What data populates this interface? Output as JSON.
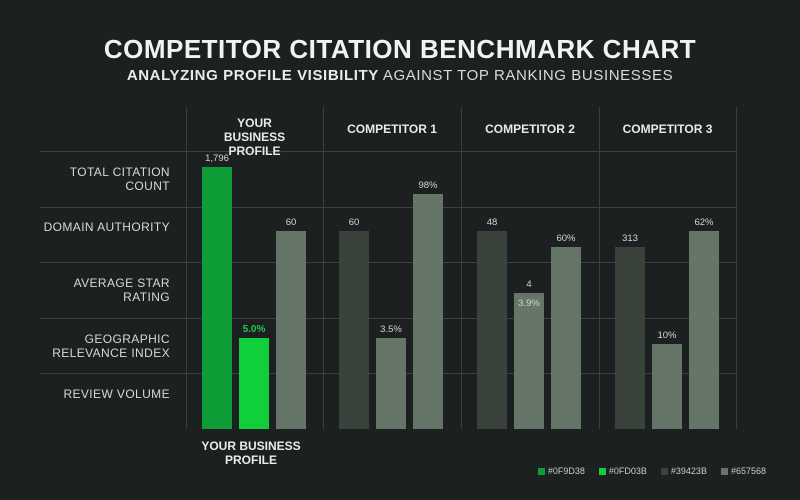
{
  "title": "COMPETITOR CITATION BENCHMARK CHART",
  "subtitle_bold": "ANALYZING PROFILE VISIBILITY",
  "subtitle_rest": " AGAINST TOP RANKING BUSINESSES",
  "bottom_label": "YOUR BUSINESS PROFILE",
  "colors": {
    "dark_green": "#0F9D38",
    "bright_green": "#0FD03B",
    "dark_gray": "#39423B",
    "light_gray": "#657568"
  },
  "legend": [
    {
      "label": "#0F9D38",
      "color": "#0F9D38"
    },
    {
      "label": "#0FD03B",
      "color": "#0FD03B"
    },
    {
      "label": "#39423B",
      "color": "#39423B"
    },
    {
      "label": "#657568",
      "color": "#657568"
    }
  ],
  "chart_data": {
    "type": "bar",
    "columns": [
      "YOUR BUSINESS PROFILE",
      "COMPETITOR 1",
      "COMPETITOR 2",
      "COMPETITOR 3"
    ],
    "rows": [
      "TOTAL CITATION COUNT",
      "DOMAIN AUTHORITY",
      "AVERAGE STAR RATING",
      "GEOGRAPHIC RELEVANCE INDEX",
      "REVIEW VOLUME"
    ],
    "groups": [
      {
        "column": "YOUR BUSINESS PROFILE",
        "bars": [
          {
            "value_label": "1,796",
            "level": 0.98,
            "color": "#0F9D38",
            "highlight": false
          },
          {
            "value_label": "5.0%",
            "level": 0.34,
            "color": "#0FD03B",
            "highlight": true
          },
          {
            "value_label": "60",
            "level": 0.74,
            "color": "#657568",
            "highlight": false
          }
        ]
      },
      {
        "column": "COMPETITOR 1",
        "bars": [
          {
            "value_label": "60",
            "level": 0.74,
            "color": "#39423B",
            "highlight": false
          },
          {
            "value_label": "3.5%",
            "level": 0.34,
            "color": "#657568",
            "highlight": false
          },
          {
            "value_label": "98%",
            "level": 0.88,
            "color": "#657568",
            "highlight": false
          }
        ]
      },
      {
        "column": "COMPETITOR 2",
        "bars": [
          {
            "value_label": "48",
            "level": 0.74,
            "color": "#39423B",
            "highlight": false
          },
          {
            "value_label": "4",
            "level": 0.51,
            "color": "#657568",
            "highlight": false,
            "second_label": "3.9%"
          },
          {
            "value_label": "60%",
            "level": 0.68,
            "color": "#657568",
            "highlight": false
          }
        ]
      },
      {
        "column": "COMPETITOR 3",
        "bars": [
          {
            "value_label": "313",
            "level": 0.68,
            "color": "#39423B",
            "highlight": false
          },
          {
            "value_label": "10%",
            "level": 0.32,
            "color": "#657568",
            "highlight": false
          },
          {
            "value_label": "62%",
            "level": 0.74,
            "color": "#657568",
            "highlight": false
          }
        ]
      }
    ]
  }
}
